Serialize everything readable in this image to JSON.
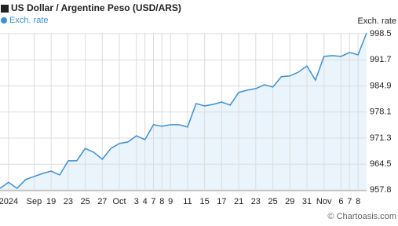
{
  "chart_data": {
    "type": "area",
    "title": "US Dollar / Argentine Peso (USD/ARS)",
    "y_label": "Exch. rate",
    "credit": "© Chartoasis.com",
    "x": [
      0,
      1,
      2,
      3,
      4,
      5,
      6,
      7,
      8,
      9,
      10,
      11,
      12,
      13,
      14,
      15,
      16,
      17,
      18,
      19,
      20,
      21,
      22,
      23,
      24,
      25,
      26,
      27,
      28,
      29,
      30,
      31,
      32,
      33,
      34,
      35,
      36,
      37,
      38,
      39,
      40,
      41,
      42,
      43
    ],
    "series": [
      {
        "name": "Exch. rate",
        "color": "#3b8fd9",
        "fill": "#eaf4fc",
        "values": [
          958.2,
          959.8,
          958.2,
          960.5,
          961.3,
          962.1,
          962.7,
          961.7,
          965.4,
          965.4,
          968.6,
          967.6,
          965.8,
          968.6,
          969.9,
          970.3,
          971.9,
          970.9,
          974.8,
          974.4,
          974.8,
          974.8,
          974.2,
          980.3,
          979.7,
          980.1,
          980.7,
          979.9,
          983.2,
          983.8,
          984.2,
          985.2,
          984.6,
          987.3,
          987.5,
          988.5,
          990.1,
          986.4,
          992.6,
          992.8,
          992.6,
          993.6,
          993.0,
          998.7
        ]
      }
    ],
    "xlim": [
      0,
      43
    ],
    "xticks": [
      {
        "value": 1,
        "label": "2024"
      },
      {
        "value": 4,
        "label": "Sep"
      },
      {
        "value": 6,
        "label": "19"
      },
      {
        "value": 8,
        "label": "23"
      },
      {
        "value": 10,
        "label": "25"
      },
      {
        "value": 12,
        "label": "27"
      },
      {
        "value": 14,
        "label": "Oct"
      },
      {
        "value": 16,
        "label": "3"
      },
      {
        "value": 17,
        "label": "4"
      },
      {
        "value": 18,
        "label": "7"
      },
      {
        "value": 19,
        "label": "8"
      },
      {
        "value": 20,
        "label": "9"
      },
      {
        "value": 22,
        "label": "11"
      },
      {
        "value": 24,
        "label": "15"
      },
      {
        "value": 26,
        "label": "17"
      },
      {
        "value": 28,
        "label": "21"
      },
      {
        "value": 30,
        "label": "23"
      },
      {
        "value": 32,
        "label": "25"
      },
      {
        "value": 34,
        "label": "29"
      },
      {
        "value": 36,
        "label": "31"
      },
      {
        "value": 38,
        "label": "Nov"
      },
      {
        "value": 40,
        "label": "6"
      },
      {
        "value": 41,
        "label": "7"
      },
      {
        "value": 42,
        "label": "8"
      }
    ],
    "ylim": [
      957.6,
      998.7
    ],
    "yticks": [
      957.8,
      964.5,
      971.3,
      978.1,
      984.9,
      991.7,
      998.5
    ],
    "grid": true
  }
}
